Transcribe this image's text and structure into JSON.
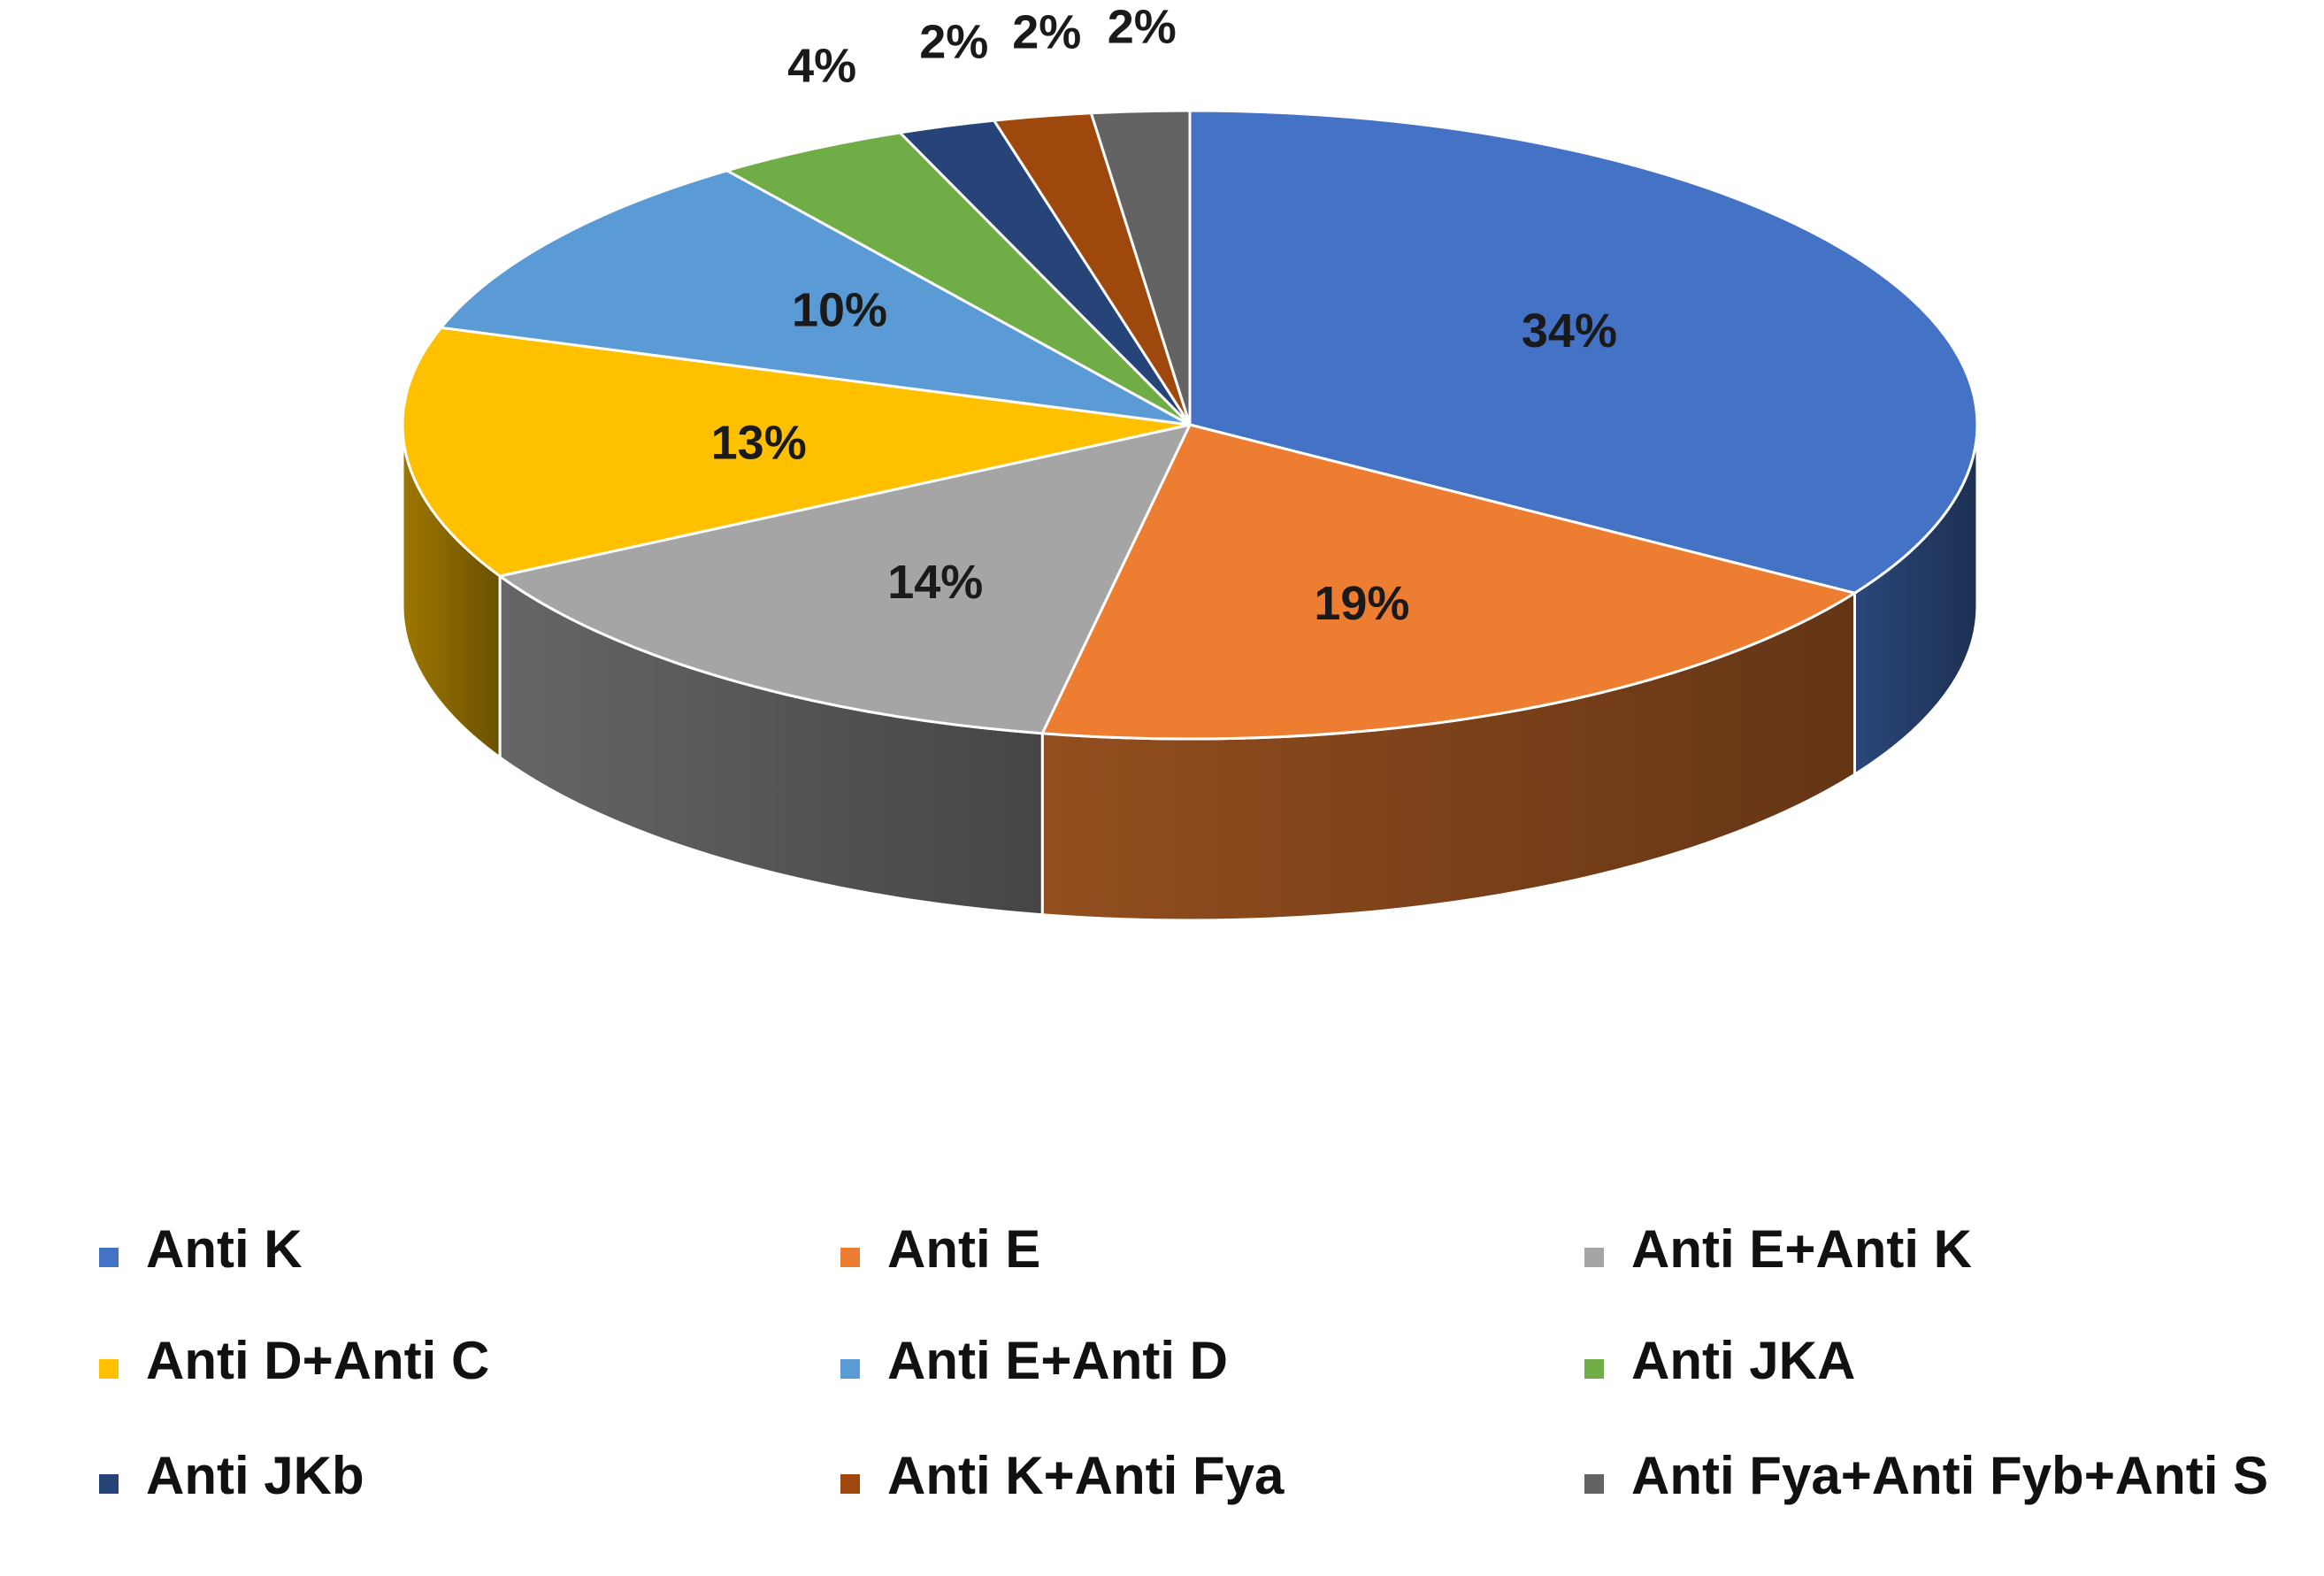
{
  "chart_data": {
    "type": "pie",
    "style": "3d",
    "start_angle_deg": 90,
    "direction": "clockwise",
    "categories": [
      "Anti K",
      "Anti E",
      "Anti E+Anti K",
      "Anti D+Anti C",
      "Anti E+Anti D",
      "Anti JKA",
      "Anti JKb",
      "Anti K+Anti Fya",
      "Anti Fya+Anti Fyb+Anti S"
    ],
    "values": [
      34,
      19,
      14,
      13,
      10,
      4,
      2,
      2,
      2
    ],
    "data_labels": [
      "34%",
      "19%",
      "14%",
      "13%",
      "10%",
      "4%",
      "2%",
      "2%",
      "2%"
    ],
    "colors": [
      "#4472C4",
      "#ED7D31",
      "#A5A5A5",
      "#FFC000",
      "#5B9BD5",
      "#70AD47",
      "#264478",
      "#9E480E",
      "#636363"
    ],
    "legend": {
      "position": "bottom",
      "columns": 3
    }
  }
}
